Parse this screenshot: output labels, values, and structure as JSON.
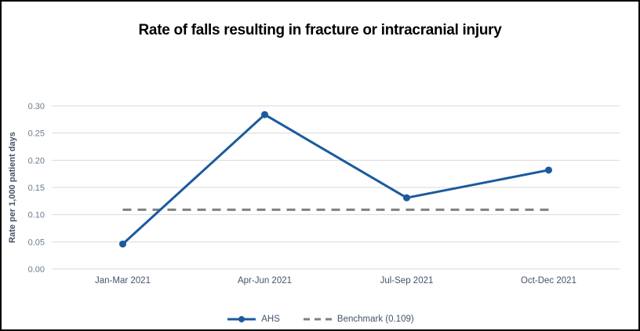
{
  "chart_data": {
    "type": "line",
    "title": "Rate of falls resulting in fracture or intracranial injury",
    "xlabel": "",
    "ylabel": "Rate per 1,000 patient days",
    "categories": [
      "Jan-Mar 2021",
      "Apr-Jun 2021",
      "Jul-Sep 2021",
      "Oct-Dec 2021"
    ],
    "series": [
      {
        "name": "AHS",
        "color": "#1B5A9E",
        "marker": "circle",
        "values": [
          0.046,
          0.284,
          0.131,
          0.182
        ]
      }
    ],
    "benchmark": {
      "label": "Benchmark (0.109)",
      "value": 0.109,
      "color": "#808080",
      "style": "dashed"
    },
    "y_ticks": [
      "0.00",
      "0.05",
      "0.10",
      "0.15",
      "0.20",
      "0.25",
      "0.30"
    ],
    "ylim": [
      0,
      0.3
    ],
    "grid": "horizontal",
    "gridline_color": "#D9D9D9",
    "legend_position": "bottom-center",
    "legend": [
      {
        "label": "AHS",
        "swatch": "line-marker",
        "color": "#1B5A9E"
      },
      {
        "label": "Benchmark (0.109)",
        "swatch": "dashed-line",
        "color": "#808080"
      }
    ]
  },
  "colors": {
    "title_text": "#000000",
    "axis_tick_label": "#6A7B8D",
    "x_axis_label": "#44546A",
    "y_axis_title": "#44546A",
    "legend_text": "#44546A",
    "frame_border": "#000000"
  }
}
